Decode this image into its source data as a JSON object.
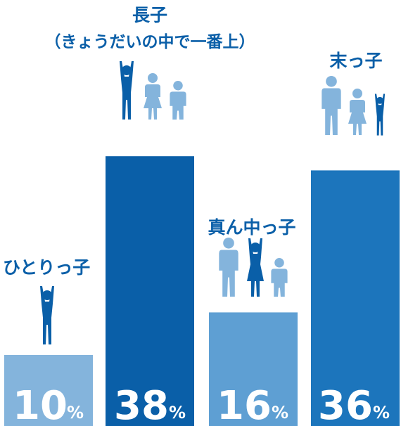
{
  "chart_data": {
    "type": "bar",
    "categories": [
      "ひとりっ子",
      "長子",
      "真ん中っ子",
      "末っ子"
    ],
    "category_sublabels": [
      "",
      "（きょうだいの中で一番上）",
      "",
      ""
    ],
    "values": [
      10,
      38,
      16,
      36
    ],
    "value_labels": [
      "10",
      "38",
      "16",
      "36"
    ],
    "unit": "%",
    "ylim": [
      0,
      60
    ],
    "grid": false,
    "legend": "none",
    "colors": {
      "bars": [
        "#84b4dc",
        "#0a5fa8",
        "#5e9fd3",
        "#1c75bc"
      ],
      "figure_dark": "#0a5fa8",
      "figure_light": "#84b4dc",
      "label": "#0a5fa8"
    },
    "figures": [
      [
        "child-arms-up"
      ],
      [
        "child-arms-up",
        "girl",
        "boy"
      ],
      [
        "adult",
        "girl-arms-up",
        "boy"
      ],
      [
        "adult",
        "girl",
        "child-arms-up"
      ]
    ]
  }
}
